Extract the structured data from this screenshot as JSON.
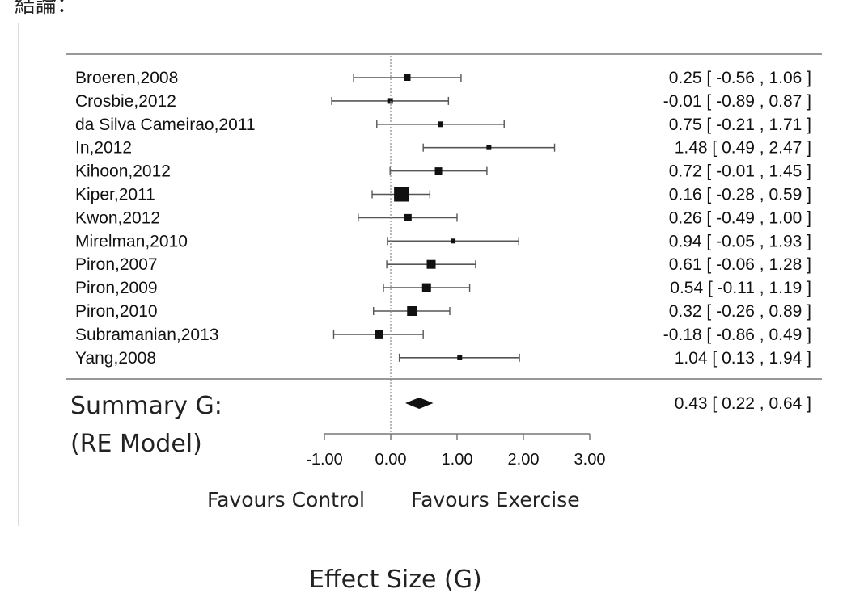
{
  "header_fragment": "結論：",
  "chart_data": {
    "type": "forest",
    "xlabel": "Effect Size (G)",
    "xlim": [
      -1.0,
      3.0
    ],
    "x_ticks": [
      "-1.00",
      "0.00",
      "1.00",
      "2.00",
      "3.00"
    ],
    "x_tick_values": [
      -1,
      0,
      1,
      2,
      3
    ],
    "reference_line": 0,
    "studies": [
      {
        "label": "Broeren,2008",
        "estimate": 0.25,
        "lower": -0.56,
        "upper": 1.06,
        "text": "0.25 [ -0.56 , 1.06 ]",
        "weight": 5
      },
      {
        "label": "Crosbie,2012",
        "estimate": -0.01,
        "lower": -0.89,
        "upper": 0.87,
        "text": "-0.01 [ -0.89 , 0.87 ]",
        "weight": 4
      },
      {
        "label": "da Silva Cameirao,2011",
        "estimate": 0.75,
        "lower": -0.21,
        "upper": 1.71,
        "text": "0.75 [ -0.21 , 1.71 ]",
        "weight": 4
      },
      {
        "label": "In,2012",
        "estimate": 1.48,
        "lower": 0.49,
        "upper": 2.47,
        "text": "1.48 [  0.49 , 2.47 ]",
        "weight": 3
      },
      {
        "label": "Kihoon,2012",
        "estimate": 0.72,
        "lower": -0.01,
        "upper": 1.45,
        "text": "0.72 [ -0.01 , 1.45 ]",
        "weight": 6
      },
      {
        "label": "Kiper,2011",
        "estimate": 0.16,
        "lower": -0.28,
        "upper": 0.59,
        "text": "0.16 [ -0.28 , 0.59 ]",
        "weight": 15
      },
      {
        "label": "Kwon,2012",
        "estimate": 0.26,
        "lower": -0.49,
        "upper": 1.0,
        "text": "0.26 [ -0.49 , 1.00 ]",
        "weight": 6
      },
      {
        "label": "Mirelman,2010",
        "estimate": 0.94,
        "lower": -0.05,
        "upper": 1.93,
        "text": "0.94 [ -0.05 , 1.93 ]",
        "weight": 3
      },
      {
        "label": "Piron,2007",
        "estimate": 0.61,
        "lower": -0.06,
        "upper": 1.28,
        "text": "0.61 [ -0.06 , 1.28 ]",
        "weight": 8
      },
      {
        "label": "Piron,2009",
        "estimate": 0.54,
        "lower": -0.11,
        "upper": 1.19,
        "text": "0.54 [ -0.11 , 1.19 ]",
        "weight": 8
      },
      {
        "label": "Piron,2010",
        "estimate": 0.32,
        "lower": -0.26,
        "upper": 0.89,
        "text": "0.32 [ -0.26 , 0.89 ]",
        "weight": 9
      },
      {
        "label": "Subramanian,2013",
        "estimate": -0.18,
        "lower": -0.86,
        "upper": 0.49,
        "text": "-0.18 [ -0.86 , 0.49 ]",
        "weight": 7
      },
      {
        "label": "Yang,2008",
        "estimate": 1.04,
        "lower": 0.13,
        "upper": 1.94,
        "text": "1.04 [  0.13 , 1.94 ]",
        "weight": 3
      }
    ],
    "summary": {
      "label_line1": "Summary G:",
      "label_line2": "(RE Model)",
      "estimate": 0.43,
      "lower": 0.22,
      "upper": 0.64,
      "text": "0.43 [  0.22 , 0.64 ]"
    },
    "favours_left": "Favours Control",
    "favours_right": "Favours Exercise",
    "colors": {
      "ink": "#111111",
      "ci_line": "#555555",
      "ref_line": "#888888",
      "rule": "#777777"
    }
  }
}
